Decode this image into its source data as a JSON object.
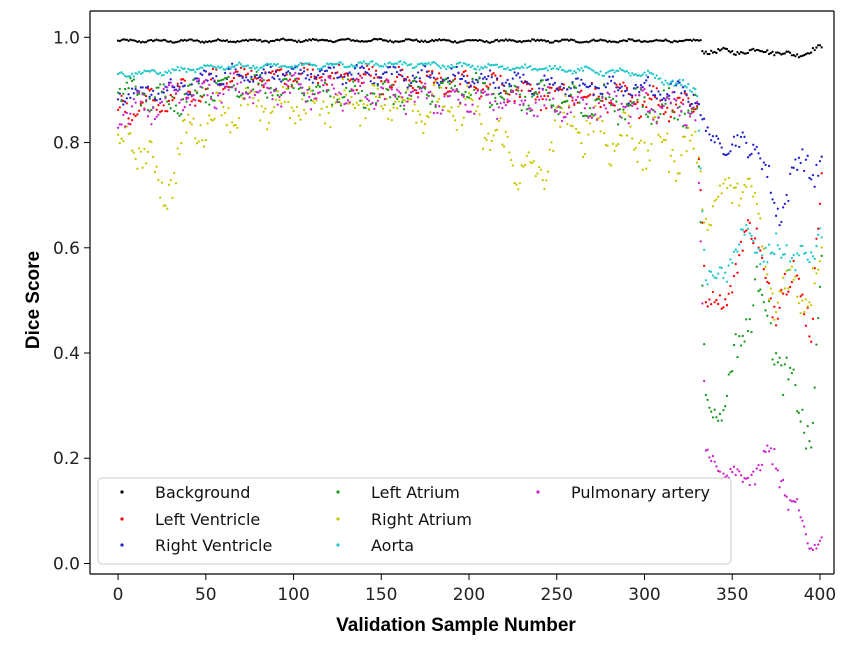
{
  "chart_data": {
    "type": "scatter",
    "title": "",
    "xlabel": "Validation Sample Number",
    "ylabel": "Dice Score",
    "xlim": [
      -16,
      408
    ],
    "ylim": [
      -0.02,
      1.05
    ],
    "xticks": [
      0,
      50,
      100,
      150,
      200,
      250,
      300,
      350,
      400
    ],
    "yticks": [
      0.0,
      0.2,
      0.4,
      0.6,
      0.8,
      1.0
    ],
    "xtick_labels": [
      "0",
      "50",
      "100",
      "150",
      "200",
      "250",
      "300",
      "350",
      "400"
    ],
    "ytick_labels": [
      "0.0",
      "0.2",
      "0.4",
      "0.6",
      "0.8",
      "1.0"
    ],
    "grid": false,
    "legend_position": "lower-left",
    "legend_columns": 3,
    "n_samples": 402,
    "series": [
      {
        "name": "Background",
        "color": "#000000",
        "x": [
          0,
          50,
          100,
          150,
          200,
          250,
          300,
          332,
          333,
          350,
          370,
          385,
          401
        ],
        "y": [
          0.993,
          0.993,
          0.994,
          0.994,
          0.993,
          0.993,
          0.993,
          0.993,
          0.975,
          0.972,
          0.975,
          0.965,
          0.98
        ],
        "scatter": [
          0.003,
          0.003,
          0.003,
          0.003,
          0.003,
          0.003,
          0.003,
          0.003,
          0.006,
          0.006,
          0.006,
          0.006,
          0.006
        ]
      },
      {
        "name": "Left Ventricle",
        "color": "#ff0000",
        "x": [
          0,
          30,
          60,
          100,
          150,
          200,
          250,
          300,
          330,
          335,
          345,
          355,
          365,
          375,
          385,
          395,
          401
        ],
        "y": [
          0.86,
          0.88,
          0.92,
          0.93,
          0.92,
          0.91,
          0.89,
          0.88,
          0.87,
          0.5,
          0.49,
          0.6,
          0.63,
          0.45,
          0.6,
          0.4,
          0.77
        ],
        "scatter": [
          0.03,
          0.03,
          0.025,
          0.02,
          0.025,
          0.025,
          0.03,
          0.03,
          0.03,
          0.02,
          0.02,
          0.04,
          0.04,
          0.05,
          0.05,
          0.06,
          0.03
        ]
      },
      {
        "name": "Right Ventricle",
        "color": "#2222cc",
        "x": [
          0,
          30,
          60,
          100,
          150,
          200,
          250,
          300,
          330,
          335,
          345,
          355,
          365,
          375,
          385,
          395,
          401
        ],
        "y": [
          0.89,
          0.9,
          0.93,
          0.93,
          0.93,
          0.92,
          0.91,
          0.9,
          0.89,
          0.81,
          0.8,
          0.79,
          0.8,
          0.65,
          0.76,
          0.74,
          0.78
        ],
        "scatter": [
          0.02,
          0.02,
          0.02,
          0.015,
          0.02,
          0.02,
          0.02,
          0.025,
          0.02,
          0.02,
          0.02,
          0.03,
          0.03,
          0.05,
          0.03,
          0.04,
          0.03
        ]
      },
      {
        "name": "Left Atrium",
        "color": "#1a9a1a",
        "x": [
          0,
          30,
          60,
          100,
          150,
          200,
          250,
          300,
          330,
          335,
          345,
          355,
          365,
          375,
          385,
          395,
          401
        ],
        "y": [
          0.9,
          0.88,
          0.91,
          0.9,
          0.89,
          0.9,
          0.88,
          0.87,
          0.86,
          0.31,
          0.28,
          0.45,
          0.52,
          0.42,
          0.3,
          0.25,
          0.55
        ],
        "scatter": [
          0.03,
          0.03,
          0.025,
          0.025,
          0.03,
          0.03,
          0.03,
          0.035,
          0.04,
          0.02,
          0.02,
          0.06,
          0.06,
          0.06,
          0.06,
          0.05,
          0.05
        ]
      },
      {
        "name": "Right Atrium",
        "color": "#c8c800",
        "x": [
          0,
          15,
          25,
          40,
          60,
          100,
          150,
          200,
          240,
          250,
          300,
          330,
          335,
          345,
          355,
          365,
          375,
          385,
          395,
          401
        ],
        "y": [
          0.8,
          0.79,
          0.7,
          0.82,
          0.86,
          0.87,
          0.88,
          0.86,
          0.72,
          0.84,
          0.8,
          0.78,
          0.66,
          0.7,
          0.73,
          0.65,
          0.48,
          0.55,
          0.5,
          0.58
        ],
        "scatter": [
          0.03,
          0.04,
          0.06,
          0.04,
          0.04,
          0.04,
          0.04,
          0.05,
          0.05,
          0.05,
          0.06,
          0.05,
          0.03,
          0.04,
          0.04,
          0.05,
          0.05,
          0.05,
          0.05,
          0.05
        ]
      },
      {
        "name": "Aorta",
        "color": "#22c8c8",
        "x": [
          0,
          30,
          60,
          100,
          150,
          200,
          250,
          300,
          330,
          335,
          345,
          355,
          365,
          375,
          385,
          395,
          401
        ],
        "y": [
          0.93,
          0.935,
          0.945,
          0.945,
          0.95,
          0.945,
          0.94,
          0.93,
          0.9,
          0.53,
          0.55,
          0.62,
          0.6,
          0.58,
          0.6,
          0.56,
          0.65
        ],
        "scatter": [
          0.006,
          0.006,
          0.006,
          0.006,
          0.006,
          0.006,
          0.006,
          0.008,
          0.01,
          0.02,
          0.03,
          0.03,
          0.03,
          0.04,
          0.04,
          0.03,
          0.04
        ]
      },
      {
        "name": "Pulmonary artery",
        "color": "#cc22cc",
        "x": [
          0,
          30,
          60,
          100,
          150,
          200,
          250,
          300,
          330,
          335,
          345,
          355,
          365,
          375,
          385,
          395,
          401
        ],
        "y": [
          0.85,
          0.88,
          0.9,
          0.9,
          0.89,
          0.88,
          0.87,
          0.87,
          0.86,
          0.21,
          0.17,
          0.16,
          0.18,
          0.2,
          0.1,
          0.03,
          0.05
        ],
        "scatter": [
          0.03,
          0.03,
          0.03,
          0.03,
          0.03,
          0.03,
          0.03,
          0.03,
          0.03,
          0.02,
          0.015,
          0.02,
          0.03,
          0.04,
          0.04,
          0.01,
          0.02
        ]
      }
    ]
  }
}
